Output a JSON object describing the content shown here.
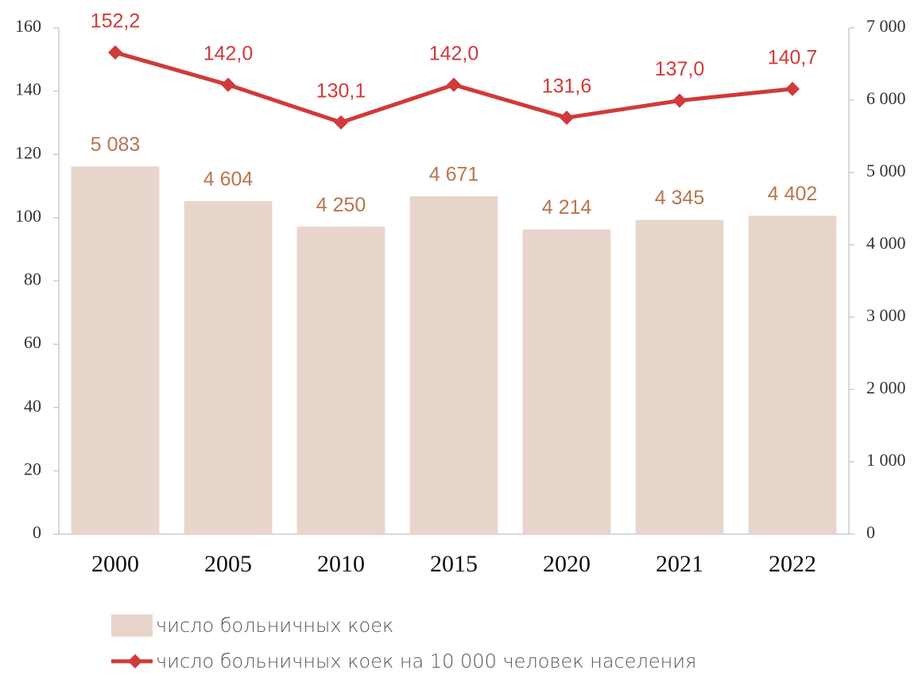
{
  "chart_data": {
    "type": "combo",
    "categories": [
      "2000",
      "2005",
      "2010",
      "2015",
      "2020",
      "2021",
      "2022"
    ],
    "series": [
      {
        "name": "число больничных коек",
        "type": "bar",
        "axis": "y2",
        "color": "#e8d5cb",
        "label_color": "#b8764f",
        "values": [
          5083,
          4604,
          4250,
          4671,
          4214,
          4345,
          4402
        ],
        "value_labels": [
          "5 083",
          "4 604",
          "4 250",
          "4 671",
          "4 214",
          "4 345",
          "4 402"
        ]
      },
      {
        "name": "число больничных коек на 10 000 человек населения",
        "type": "line",
        "axis": "y",
        "color": "#d03a3a",
        "label_color": "#d03a3a",
        "values": [
          152.2,
          142.0,
          130.1,
          142.0,
          131.6,
          137.0,
          140.7
        ],
        "value_labels": [
          "152,2",
          "142,0",
          "130,1",
          "142,0",
          "131,6",
          "137,0",
          "140,7"
        ]
      }
    ],
    "ylim": [
      0,
      160
    ],
    "yticks": [
      0,
      20,
      40,
      60,
      80,
      100,
      120,
      140,
      160
    ],
    "y2lim": [
      0,
      7000
    ],
    "y2ticks": [
      0,
      {
        "value": 1000,
        "label": "1 000"
      },
      {
        "value": 2000,
        "label": "2 000"
      },
      {
        "value": 3000,
        "label": "3 000"
      },
      {
        "value": 4000,
        "label": "4 000"
      },
      {
        "value": 5000,
        "label": "5 000"
      },
      {
        "value": 6000,
        "label": "6 000"
      },
      {
        "value": 7000,
        "label": "7 000"
      }
    ],
    "legend": "bottom"
  }
}
